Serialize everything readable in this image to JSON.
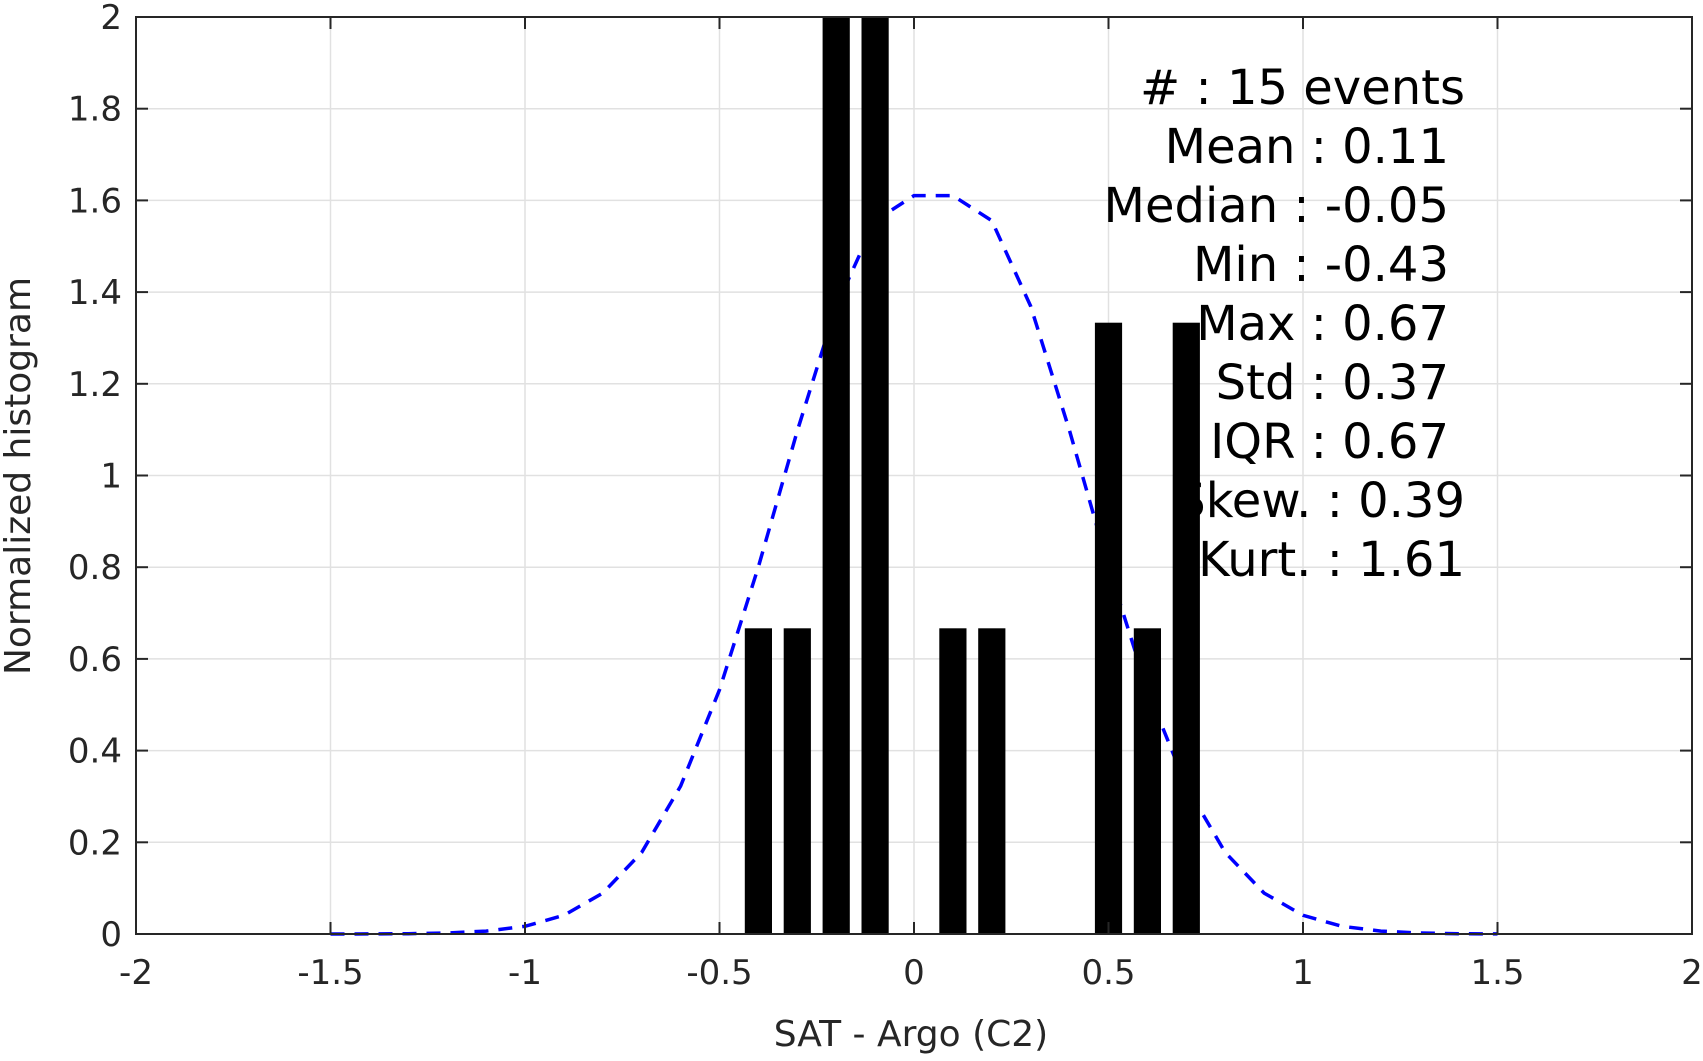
{
  "chart_data": {
    "type": "bar",
    "title": "",
    "xlabel": "SAT - Argo (C2)",
    "ylabel": "Normalized histogram",
    "xlim": [
      -2,
      2
    ],
    "ylim": [
      0,
      2
    ],
    "xticks": [
      -2,
      -1.5,
      -1,
      -0.5,
      0,
      0.5,
      1,
      1.5,
      2
    ],
    "xtick_labels": [
      "-2",
      "-1.5",
      "-1",
      "-0.5",
      "0",
      "0.5",
      "1",
      "1.5",
      "2"
    ],
    "yticks": [
      0,
      0.2,
      0.4,
      0.6,
      0.8,
      1,
      1.2,
      1.4,
      1.6,
      1.8,
      2
    ],
    "ytick_labels": [
      "0",
      "0.2",
      "0.4",
      "0.6",
      "0.8",
      "1",
      "1.2",
      "1.4",
      "1.6",
      "1.8",
      "2"
    ],
    "grid": true,
    "bar_width": 0.07,
    "bars": [
      {
        "x": -0.4,
        "value": 0.6667
      },
      {
        "x": -0.3,
        "value": 0.6667
      },
      {
        "x": -0.2,
        "value": 2.0
      },
      {
        "x": -0.1,
        "value": 2.0
      },
      {
        "x": 0.1,
        "value": 0.6667
      },
      {
        "x": 0.2,
        "value": 0.6667
      },
      {
        "x": 0.5,
        "value": 1.3333
      },
      {
        "x": 0.6,
        "value": 0.6667
      },
      {
        "x": 0.7,
        "value": 1.3333
      }
    ],
    "fit_curve": {
      "style": "dashed",
      "color": "#0000ff",
      "points": [
        [
          -1.5,
          0.0
        ],
        [
          -1.4,
          0.0002
        ],
        [
          -1.3,
          0.0007
        ],
        [
          -1.2,
          0.0022
        ],
        [
          -1.1,
          0.0064
        ],
        [
          -1.0,
          0.0169
        ],
        [
          -0.9,
          0.0408
        ],
        [
          -0.8,
          0.0893
        ],
        [
          -0.7,
          0.178
        ],
        [
          -0.6,
          0.3226
        ],
        [
          -0.5,
          0.5326
        ],
        [
          -0.4,
          0.8009
        ],
        [
          -0.3,
          1.0972
        ],
        [
          -0.2,
          1.3691
        ],
        [
          -0.1,
          1.5558
        ],
        [
          0.0,
          1.6104
        ],
        [
          0.1,
          1.6104
        ],
        [
          0.2,
          1.5558
        ],
        [
          0.3,
          1.3691
        ],
        [
          0.4,
          1.0972
        ],
        [
          0.5,
          0.8009
        ],
        [
          0.6,
          0.5326
        ],
        [
          0.7,
          0.3226
        ],
        [
          0.8,
          0.178
        ],
        [
          0.9,
          0.0893
        ],
        [
          1.0,
          0.0408
        ],
        [
          1.1,
          0.0169
        ],
        [
          1.2,
          0.0064
        ],
        [
          1.3,
          0.0022
        ],
        [
          1.4,
          0.0007
        ],
        [
          1.5,
          0.0002
        ]
      ]
    },
    "annotations": [
      "#  : 15 events",
      "Mean : 0.11",
      "Median : -0.05",
      "Min : -0.43",
      "Max : 0.67",
      "Std : 0.37",
      "IQR : 0.67",
      "Skew. : 0.39",
      "Kurt. : 1.61"
    ],
    "colors": {
      "bars": "#000000",
      "fit": "#0000ff",
      "grid": "#e1e1e1",
      "axis": "#262626"
    }
  }
}
